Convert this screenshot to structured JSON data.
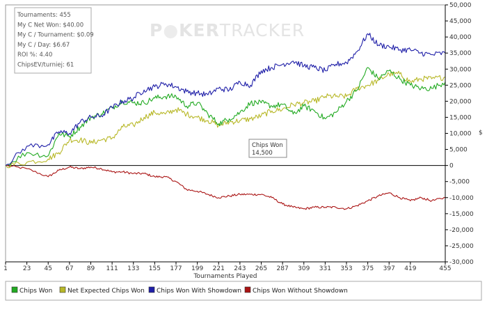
{
  "stats": {
    "lines": [
      "Tournaments: 455",
      "My C Net Won: $40.00",
      "My C / Tournament: $0.09",
      "My C / Day: $6.67",
      "ROI %: 4.40",
      "ChipsEV/turniej: 61"
    ]
  },
  "watermark": {
    "part1": "P",
    "part2": "KER",
    "part3": "TRACKER"
  },
  "tooltip": {
    "title": "Chips Won",
    "value": "14,500"
  },
  "legend": [
    {
      "label": "Chips Won",
      "color": "#22aa22"
    },
    {
      "label": "Net Expected Chips Won",
      "color": "#b8b828"
    },
    {
      "label": "Chips Won With Showdown",
      "color": "#1f1fa8"
    },
    {
      "label": "Chips Won Without Showdown",
      "color": "#aa1414"
    }
  ],
  "colors": {
    "axis": "#000000",
    "zero_line": "#000000",
    "frame": "#999999"
  },
  "chart_data": {
    "type": "line",
    "xlabel": "Tournaments Played",
    "ylabel": "$",
    "xlim": [
      1,
      455
    ],
    "ylim": [
      -30000,
      50000
    ],
    "x_ticks": [
      1,
      23,
      45,
      67,
      89,
      111,
      133,
      155,
      177,
      199,
      221,
      243,
      265,
      287,
      309,
      331,
      353,
      375,
      397,
      419,
      455
    ],
    "y_ticks": [
      -30000,
      -25000,
      -20000,
      -15000,
      -10000,
      -5000,
      0,
      5000,
      10000,
      15000,
      20000,
      25000,
      30000,
      35000,
      40000,
      45000,
      50000
    ],
    "y_tick_labels": [
      "-30,000",
      "-25,000",
      "-20,000",
      "-15,000",
      "-10,000",
      "-5,000",
      "0",
      "5,000",
      "10,000",
      "15,000",
      "20,000",
      "25,000",
      "30,000",
      "35,000",
      "40,000",
      "45,000",
      "50,000"
    ],
    "x": [
      1,
      23,
      45,
      56,
      67,
      78,
      89,
      100,
      111,
      122,
      133,
      144,
      155,
      166,
      177,
      188,
      199,
      210,
      221,
      232,
      243,
      254,
      265,
      276,
      287,
      298,
      309,
      320,
      331,
      342,
      353,
      364,
      375,
      386,
      397,
      408,
      419,
      430,
      441,
      455
    ],
    "series": [
      {
        "name": "Chips Won",
        "values": [
          0,
          4000,
          3000,
          10000,
          9000,
          12000,
          15000,
          16000,
          18000,
          20000,
          19500,
          19500,
          21000,
          21500,
          21500,
          18500,
          19500,
          16000,
          13000,
          14500,
          16500,
          19500,
          19500,
          18500,
          19000,
          16000,
          18500,
          17000,
          14500,
          16500,
          20000,
          23500,
          30500,
          27000,
          29500,
          27000,
          25000,
          24000,
          24000,
          26000
        ]
      },
      {
        "name": "Net Expected Chips Won",
        "values": [
          0,
          1000,
          2000,
          4000,
          8000,
          8000,
          7000,
          8000,
          8500,
          12000,
          12500,
          15000,
          16500,
          16000,
          17500,
          16000,
          15000,
          14000,
          12500,
          13500,
          14000,
          14500,
          15500,
          17000,
          17500,
          19000,
          19500,
          20000,
          21500,
          21500,
          21500,
          24000,
          25000,
          26500,
          28500,
          28500,
          26000,
          27000,
          27000,
          27500
        ]
      },
      {
        "name": "Chips Won With Showdown",
        "values": [
          0,
          6000,
          6500,
          10500,
          10000,
          13500,
          15000,
          15500,
          18000,
          20000,
          21000,
          23500,
          24500,
          25500,
          24500,
          23000,
          22500,
          22000,
          24000,
          23500,
          26000,
          25000,
          29500,
          30500,
          31500,
          32500,
          31000,
          30500,
          29500,
          31500,
          32000,
          35500,
          41000,
          37500,
          37000,
          36000,
          36000,
          35000,
          34500,
          35000
        ]
      },
      {
        "name": "Chips Won Without Showdown",
        "values": [
          0,
          -1000,
          -3500,
          -1500,
          -500,
          -1000,
          -500,
          -1000,
          -2000,
          -2000,
          -2500,
          -2500,
          -3500,
          -3500,
          -5000,
          -7500,
          -8000,
          -9000,
          -10000,
          -9500,
          -9000,
          -9000,
          -9000,
          -10000,
          -12000,
          -13000,
          -13500,
          -13000,
          -13000,
          -13000,
          -13500,
          -12500,
          -11000,
          -9500,
          -8500,
          -10000,
          -11000,
          -10000,
          -11000,
          -10000
        ]
      }
    ]
  }
}
